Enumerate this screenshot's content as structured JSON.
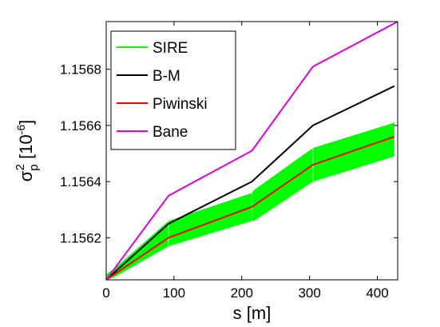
{
  "chart_data": {
    "type": "line",
    "title": "",
    "xlabel": "s [m]",
    "ylabel": {
      "symbol": "σ",
      "superscript": "2",
      "subscript": "p",
      "unit": " [10",
      "unit_exp": "-6",
      "unit_close": "]"
    },
    "xlim": [
      0,
      430
    ],
    "ylim": [
      1.15605,
      1.15697
    ],
    "x_ticks": [
      0,
      100,
      200,
      300,
      400
    ],
    "x_tick_labels": [
      "0",
      "100",
      "200",
      "300",
      "400"
    ],
    "y_ticks": [
      1.1562,
      1.1564,
      1.1566,
      1.1568
    ],
    "y_tick_labels": [
      "1.1562",
      "1.1564",
      "1.1566",
      "1.1568"
    ],
    "grid": false,
    "legend_position": "top-left",
    "band": {
      "name": "SIRE",
      "color": "#00ff00",
      "x": [
        0,
        12,
        92,
        215,
        218,
        305,
        425
      ],
      "lower": [
        1.15605,
        1.15606,
        1.15617,
        1.15626,
        1.15626,
        1.1564,
        1.15649
      ],
      "upper": [
        1.15607,
        1.15609,
        1.15626,
        1.15636,
        1.15637,
        1.15652,
        1.15661
      ]
    },
    "band_markers": [
      {
        "x": 92,
        "lower": 1.15617,
        "upper": 1.15626
      },
      {
        "x": 215,
        "lower": 1.15626,
        "upper": 1.15636
      },
      {
        "x": 305,
        "lower": 1.1564,
        "upper": 1.15652
      }
    ],
    "series": [
      {
        "name": "B-M",
        "color": "#000000",
        "x": [
          0,
          92,
          215,
          305,
          425
        ],
        "values": [
          1.15605,
          1.15625,
          1.1564,
          1.1566,
          1.15674
        ]
      },
      {
        "name": "Piwinski",
        "color": "#ff0000",
        "x": [
          0,
          92,
          215,
          305,
          425
        ],
        "values": [
          1.15605,
          1.1562,
          1.15631,
          1.15646,
          1.15656
        ]
      },
      {
        "name": "Bane",
        "color": "#e000e0",
        "x": [
          0,
          92,
          215,
          305,
          430
        ],
        "values": [
          1.15605,
          1.15635,
          1.15651,
          1.15681,
          1.15697
        ]
      }
    ],
    "legend": [
      {
        "label": "SIRE",
        "color": "#00ff00"
      },
      {
        "label": "B-M",
        "color": "#000000"
      },
      {
        "label": "Piwinski",
        "color": "#ff0000"
      },
      {
        "label": "Bane",
        "color": "#e000e0"
      }
    ]
  }
}
